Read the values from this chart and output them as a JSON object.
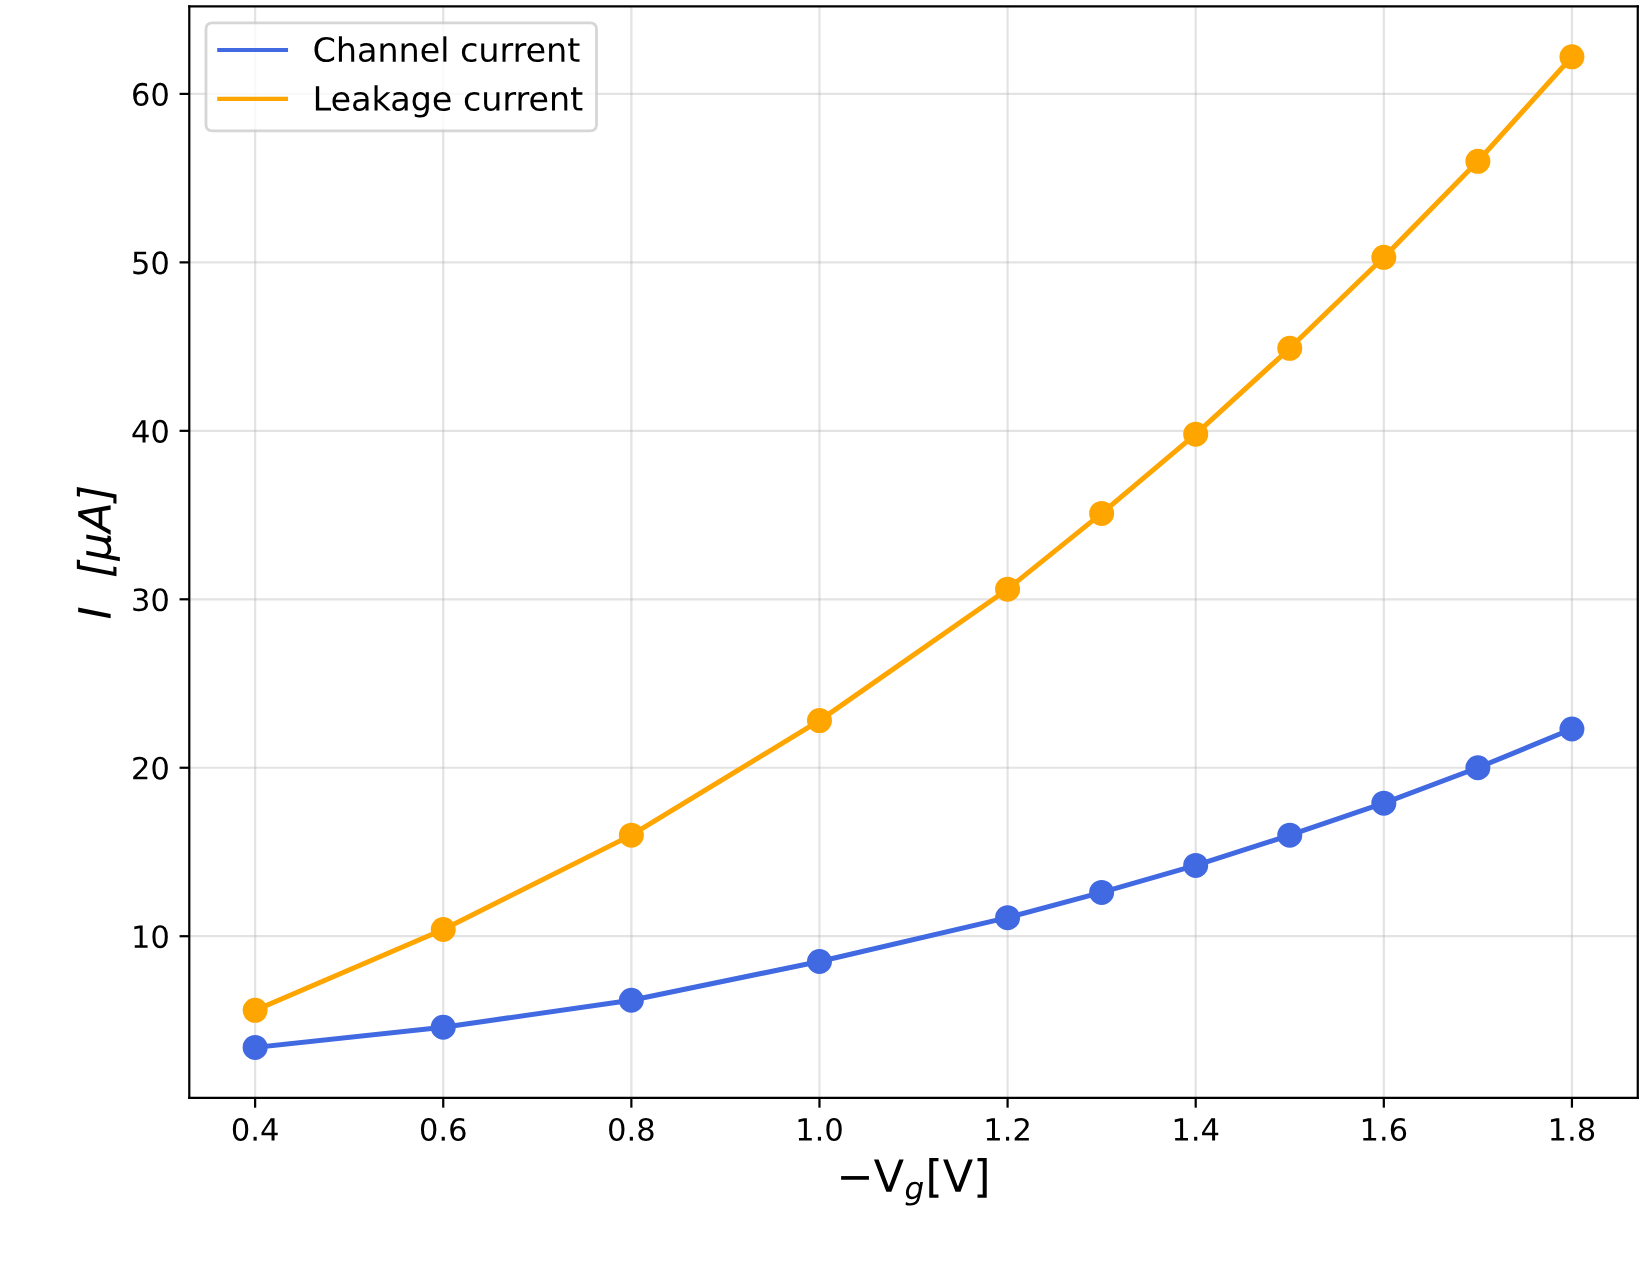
{
  "chart_data": {
    "type": "line",
    "xlabel": "−V$_{g}$[V]",
    "ylabel": "I  [μA]",
    "x": [
      0.4,
      0.6,
      0.8,
      1.0,
      1.2,
      1.3,
      1.4,
      1.5,
      1.6,
      1.7,
      1.8
    ],
    "series": [
      {
        "name": "Channel current",
        "color": "#4169e1",
        "values": [
          3.4,
          4.6,
          6.2,
          8.5,
          11.1,
          12.6,
          14.2,
          16.0,
          17.9,
          20.0,
          22.3
        ]
      },
      {
        "name": "Leakage current",
        "color": "#ffa500",
        "values": [
          5.6,
          10.4,
          16.0,
          22.8,
          30.6,
          35.1,
          39.8,
          44.9,
          50.3,
          56.0,
          62.2
        ]
      }
    ],
    "xlim": [
      0.33,
      1.87
    ],
    "xticks": [
      {
        "value": 0.4,
        "label": "0.4"
      },
      {
        "value": 0.6,
        "label": "0.6"
      },
      {
        "value": 0.8,
        "label": "0.8"
      },
      {
        "value": 1.0,
        "label": "1.0"
      },
      {
        "value": 1.2,
        "label": "1.2"
      },
      {
        "value": 1.4,
        "label": "1.4"
      },
      {
        "value": 1.6,
        "label": "1.6"
      },
      {
        "value": 1.8,
        "label": "1.8"
      }
    ],
    "ylim": [
      0.4,
      65.2
    ],
    "yticks": [
      10,
      20,
      30,
      40,
      50,
      60
    ],
    "grid": true,
    "legend": "top left",
    "marker": "circle",
    "line_style": "solid"
  }
}
